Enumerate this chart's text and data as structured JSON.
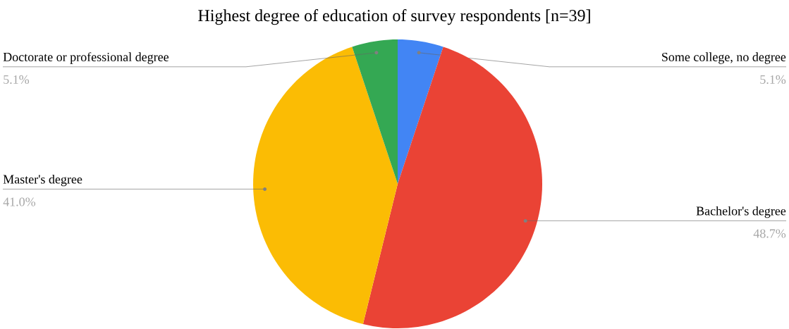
{
  "chart_data": {
    "type": "pie",
    "title": "Highest degree of education of survey respondents [n=39]",
    "categories": [
      "Some college, no degree",
      "Bachelor's degree",
      "Master's degree",
      "Doctorate or professional degree"
    ],
    "values": [
      5.1,
      48.7,
      41.0,
      5.1
    ],
    "value_labels": [
      "5.1%",
      "48.7%",
      "41.0%",
      "5.1%"
    ],
    "colors": [
      "#4285f4",
      "#ea4335",
      "#fbbc04",
      "#34a853"
    ]
  }
}
